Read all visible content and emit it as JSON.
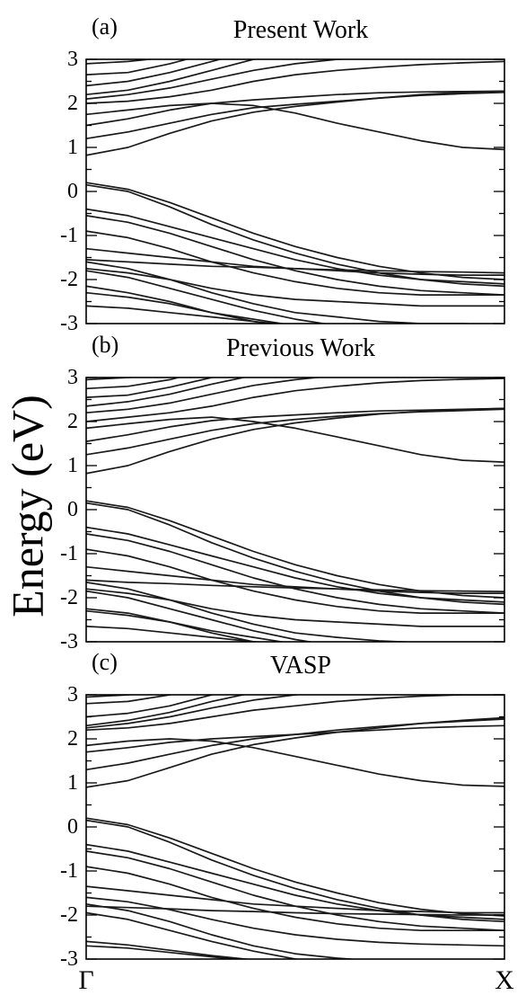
{
  "figure": {
    "ylabel": "Energy (eV)",
    "x_tick_labels": [
      "Γ",
      "X"
    ]
  },
  "chart_data": [
    {
      "type": "line",
      "panel_label": "(a)",
      "title": "Present Work",
      "ylabel": "Energy (eV)",
      "ylim": [
        -3,
        3
      ],
      "yticks": [
        3,
        2,
        1,
        0,
        -1,
        -2,
        -3
      ],
      "xlim": [
        0,
        1
      ],
      "x_tick_labels": [
        "Γ",
        "X"
      ],
      "x": [
        0,
        0.1,
        0.2,
        0.3,
        0.4,
        0.5,
        0.6,
        0.7,
        0.8,
        0.9,
        1
      ],
      "series": [
        {
          "values": [
            0.82,
            1.0,
            1.32,
            1.6,
            1.8,
            1.93,
            2.03,
            2.12,
            2.2,
            2.25,
            2.28
          ]
        },
        {
          "values": [
            1.2,
            1.35,
            1.55,
            1.75,
            1.9,
            1.98,
            2.05,
            2.12,
            2.18,
            2.22,
            2.25
          ]
        },
        {
          "values": [
            1.5,
            1.65,
            1.85,
            2.0,
            2.08,
            2.14,
            2.2,
            2.24,
            2.26,
            2.27,
            2.28
          ]
        },
        {
          "values": [
            1.75,
            1.85,
            1.95,
            2.0,
            1.95,
            1.78,
            1.55,
            1.35,
            1.15,
            1.0,
            0.95
          ]
        },
        {
          "values": [
            2.0,
            2.05,
            2.15,
            2.3,
            2.5,
            2.65,
            2.75,
            2.82,
            2.88,
            2.92,
            2.95
          ]
        },
        {
          "values": [
            2.1,
            2.2,
            2.35,
            2.55,
            2.75,
            2.9,
            3.0,
            3.05,
            3.1,
            3.1,
            3.1
          ]
        },
        {
          "values": [
            2.2,
            2.3,
            2.5,
            2.75,
            3.0,
            3.2,
            3.3,
            3.4,
            3.45,
            3.5,
            3.5
          ]
        },
        {
          "values": [
            2.4,
            2.5,
            2.7,
            2.95,
            3.2,
            3.4,
            3.5,
            3.5,
            3.5,
            3.5,
            3.5
          ]
        },
        {
          "values": [
            2.65,
            2.7,
            2.9,
            3.15,
            3.35,
            3.5,
            3.5,
            3.5,
            3.5,
            3.5,
            3.5
          ]
        },
        {
          "values": [
            2.9,
            2.95,
            3.05,
            3.25,
            3.45,
            3.5,
            3.5,
            3.5,
            3.5,
            3.5,
            3.5
          ]
        },
        {
          "values": [
            0.2,
            0.05,
            -0.25,
            -0.6,
            -0.95,
            -1.25,
            -1.5,
            -1.7,
            -1.85,
            -1.95,
            -2.0
          ]
        },
        {
          "values": [
            0.15,
            0.0,
            -0.35,
            -0.75,
            -1.1,
            -1.4,
            -1.65,
            -1.85,
            -2.0,
            -2.1,
            -2.15
          ]
        },
        {
          "values": [
            -0.4,
            -0.55,
            -0.8,
            -1.05,
            -1.3,
            -1.55,
            -1.75,
            -1.9,
            -2.0,
            -2.05,
            -2.1
          ]
        },
        {
          "values": [
            -0.55,
            -0.7,
            -0.95,
            -1.25,
            -1.55,
            -1.8,
            -2.0,
            -2.15,
            -2.25,
            -2.3,
            -2.35
          ]
        },
        {
          "values": [
            -0.9,
            -1.05,
            -1.3,
            -1.6,
            -1.85,
            -2.05,
            -2.2,
            -2.3,
            -2.35,
            -2.35,
            -2.35
          ]
        },
        {
          "values": [
            -1.3,
            -1.4,
            -1.5,
            -1.6,
            -1.7,
            -1.75,
            -1.8,
            -1.85,
            -1.88,
            -1.9,
            -1.9
          ]
        },
        {
          "values": [
            -1.55,
            -1.6,
            -1.65,
            -1.7,
            -1.72,
            -1.75,
            -1.78,
            -1.8,
            -1.82,
            -1.83,
            -1.85
          ]
        },
        {
          "values": [
            -1.6,
            -1.75,
            -2.0,
            -2.3,
            -2.55,
            -2.75,
            -2.85,
            -2.95,
            -3.0,
            -3.0,
            -3.05
          ]
        },
        {
          "values": [
            -1.8,
            -1.95,
            -2.2,
            -2.45,
            -2.7,
            -2.9,
            -3.05,
            -3.15,
            -3.2,
            -3.2,
            -3.2
          ]
        },
        {
          "values": [
            -2.15,
            -2.3,
            -2.5,
            -2.75,
            -2.95,
            -3.1,
            -3.2,
            -3.25,
            -3.3,
            -3.3,
            -3.3
          ]
        },
        {
          "values": [
            -2.3,
            -2.4,
            -2.55,
            -2.75,
            -2.9,
            -3.05,
            -3.15,
            -3.2,
            -3.25,
            -3.25,
            -3.25
          ]
        },
        {
          "values": [
            -2.6,
            -2.65,
            -2.75,
            -2.85,
            -2.95,
            -3.05,
            -3.1,
            -3.15,
            -3.2,
            -3.2,
            -3.2
          ]
        },
        {
          "values": [
            -1.75,
            -1.85,
            -2.0,
            -2.2,
            -2.35,
            -2.45,
            -2.5,
            -2.55,
            -2.6,
            -2.6,
            -2.6
          ]
        }
      ]
    },
    {
      "type": "line",
      "panel_label": "(b)",
      "title": "Previous Work",
      "ylabel": "Energy (eV)",
      "ylim": [
        -3,
        3
      ],
      "yticks": [
        3,
        2,
        1,
        0,
        -1,
        -2,
        -3
      ],
      "xlim": [
        0,
        1
      ],
      "x_tick_labels": [
        "Γ",
        "X"
      ],
      "x": [
        0,
        0.1,
        0.2,
        0.3,
        0.4,
        0.5,
        0.6,
        0.7,
        0.8,
        0.9,
        1
      ],
      "series": [
        {
          "values": [
            0.82,
            1.0,
            1.32,
            1.6,
            1.82,
            1.97,
            2.08,
            2.17,
            2.23,
            2.27,
            2.3
          ]
        },
        {
          "values": [
            1.25,
            1.4,
            1.6,
            1.8,
            1.95,
            2.05,
            2.12,
            2.18,
            2.22,
            2.25,
            2.28
          ]
        },
        {
          "values": [
            1.55,
            1.7,
            1.88,
            2.02,
            2.1,
            2.15,
            2.2,
            2.24,
            2.26,
            2.28,
            2.3
          ]
        },
        {
          "values": [
            1.85,
            1.95,
            2.05,
            2.1,
            2.0,
            1.85,
            1.65,
            1.45,
            1.25,
            1.12,
            1.08
          ]
        },
        {
          "values": [
            2.0,
            2.1,
            2.2,
            2.35,
            2.55,
            2.7,
            2.8,
            2.88,
            2.93,
            2.96,
            2.98
          ]
        },
        {
          "values": [
            2.2,
            2.28,
            2.42,
            2.62,
            2.82,
            2.95,
            3.05,
            3.1,
            3.12,
            3.12,
            3.12
          ]
        },
        {
          "values": [
            2.35,
            2.45,
            2.62,
            2.85,
            3.05,
            3.25,
            3.35,
            3.45,
            3.5,
            3.5,
            3.5
          ]
        },
        {
          "values": [
            2.55,
            2.6,
            2.78,
            3.0,
            3.25,
            3.45,
            3.5,
            3.5,
            3.5,
            3.5,
            3.5
          ]
        },
        {
          "values": [
            2.75,
            2.8,
            2.95,
            3.2,
            3.4,
            3.5,
            3.5,
            3.5,
            3.5,
            3.5,
            3.5
          ]
        },
        {
          "values": [
            2.95,
            3.0,
            3.1,
            3.3,
            3.5,
            3.5,
            3.5,
            3.5,
            3.5,
            3.5,
            3.5
          ]
        },
        {
          "values": [
            0.2,
            0.05,
            -0.25,
            -0.6,
            -0.95,
            -1.25,
            -1.5,
            -1.7,
            -1.85,
            -1.95,
            -2.0
          ]
        },
        {
          "values": [
            0.15,
            0.0,
            -0.35,
            -0.75,
            -1.1,
            -1.4,
            -1.65,
            -1.85,
            -2.0,
            -2.1,
            -2.15
          ]
        },
        {
          "values": [
            -0.4,
            -0.55,
            -0.8,
            -1.05,
            -1.3,
            -1.55,
            -1.75,
            -1.9,
            -2.0,
            -2.05,
            -2.1
          ]
        },
        {
          "values": [
            -0.55,
            -0.7,
            -0.95,
            -1.25,
            -1.55,
            -1.8,
            -2.0,
            -2.15,
            -2.25,
            -2.3,
            -2.35
          ]
        },
        {
          "values": [
            -0.9,
            -1.05,
            -1.3,
            -1.6,
            -1.85,
            -2.05,
            -2.2,
            -2.3,
            -2.35,
            -2.35,
            -2.35
          ]
        },
        {
          "values": [
            -1.3,
            -1.4,
            -1.5,
            -1.6,
            -1.7,
            -1.75,
            -1.8,
            -1.85,
            -1.88,
            -1.9,
            -1.9
          ]
        },
        {
          "values": [
            -1.6,
            -1.65,
            -1.68,
            -1.72,
            -1.75,
            -1.78,
            -1.8,
            -1.82,
            -1.84,
            -1.85,
            -1.86
          ]
        },
        {
          "values": [
            -1.65,
            -1.8,
            -2.05,
            -2.35,
            -2.6,
            -2.8,
            -2.9,
            -2.98,
            -3.02,
            -3.05,
            -3.05
          ]
        },
        {
          "values": [
            -1.85,
            -2.0,
            -2.25,
            -2.5,
            -2.75,
            -2.95,
            -3.1,
            -3.18,
            -3.2,
            -3.2,
            -3.2
          ]
        },
        {
          "values": [
            -2.25,
            -2.35,
            -2.55,
            -2.8,
            -3.0,
            -3.15,
            -3.25,
            -3.3,
            -3.3,
            -3.3,
            -3.3
          ]
        },
        {
          "values": [
            -2.3,
            -2.4,
            -2.55,
            -2.75,
            -2.9,
            -3.05,
            -3.15,
            -3.2,
            -3.25,
            -3.25,
            -3.25
          ]
        },
        {
          "values": [
            -2.65,
            -2.7,
            -2.8,
            -2.9,
            -3.0,
            -3.05,
            -3.1,
            -3.15,
            -3.2,
            -3.2,
            -3.2
          ]
        },
        {
          "values": [
            -1.8,
            -1.9,
            -2.05,
            -2.25,
            -2.4,
            -2.5,
            -2.55,
            -2.6,
            -2.65,
            -2.65,
            -2.65
          ]
        }
      ]
    },
    {
      "type": "line",
      "panel_label": "(c)",
      "title": "VASP",
      "ylabel": "Energy (eV)",
      "ylim": [
        -3,
        3
      ],
      "yticks": [
        3,
        2,
        1,
        0,
        -1,
        -2,
        -3
      ],
      "xlim": [
        0,
        1
      ],
      "x_tick_labels": [
        "Γ",
        "X"
      ],
      "x": [
        0,
        0.1,
        0.2,
        0.3,
        0.4,
        0.5,
        0.6,
        0.7,
        0.8,
        0.9,
        1
      ],
      "series": [
        {
          "values": [
            0.9,
            1.05,
            1.35,
            1.65,
            1.87,
            2.02,
            2.15,
            2.25,
            2.35,
            2.42,
            2.48
          ]
        },
        {
          "values": [
            1.3,
            1.45,
            1.65,
            1.85,
            2.0,
            2.1,
            2.2,
            2.28,
            2.35,
            2.4,
            2.45
          ]
        },
        {
          "values": [
            1.7,
            1.8,
            1.92,
            2.0,
            2.05,
            2.1,
            2.15,
            2.2,
            2.25,
            2.28,
            2.3
          ]
        },
        {
          "values": [
            1.85,
            1.95,
            2.0,
            1.95,
            1.8,
            1.6,
            1.4,
            1.2,
            1.05,
            0.95,
            0.92
          ]
        },
        {
          "values": [
            2.2,
            2.25,
            2.35,
            2.5,
            2.65,
            2.75,
            2.85,
            2.92,
            2.97,
            3.0,
            3.0
          ]
        },
        {
          "values": [
            2.25,
            2.35,
            2.5,
            2.7,
            2.88,
            3.0,
            3.1,
            3.15,
            3.2,
            3.2,
            3.2
          ]
        },
        {
          "values": [
            2.3,
            2.42,
            2.6,
            2.85,
            3.05,
            3.25,
            3.35,
            3.45,
            3.5,
            3.5,
            3.5
          ]
        },
        {
          "values": [
            2.5,
            2.58,
            2.75,
            3.0,
            3.25,
            3.45,
            3.5,
            3.5,
            3.5,
            3.5,
            3.5
          ]
        },
        {
          "values": [
            2.8,
            2.85,
            3.0,
            3.2,
            3.4,
            3.5,
            3.5,
            3.5,
            3.5,
            3.5,
            3.5
          ]
        },
        {
          "values": [
            2.95,
            3.0,
            3.1,
            3.3,
            3.5,
            3.5,
            3.5,
            3.5,
            3.5,
            3.5,
            3.5
          ]
        },
        {
          "values": [
            0.2,
            0.05,
            -0.25,
            -0.6,
            -0.95,
            -1.25,
            -1.5,
            -1.72,
            -1.87,
            -1.97,
            -2.02
          ]
        },
        {
          "values": [
            0.15,
            0.0,
            -0.35,
            -0.75,
            -1.1,
            -1.4,
            -1.65,
            -1.85,
            -2.0,
            -2.1,
            -2.15
          ]
        },
        {
          "values": [
            -0.4,
            -0.55,
            -0.8,
            -1.05,
            -1.3,
            -1.55,
            -1.75,
            -1.9,
            -2.0,
            -2.05,
            -2.1
          ]
        },
        {
          "values": [
            -0.55,
            -0.7,
            -0.95,
            -1.25,
            -1.55,
            -1.8,
            -2.0,
            -2.15,
            -2.25,
            -2.3,
            -2.35
          ]
        },
        {
          "values": [
            -0.9,
            -1.05,
            -1.3,
            -1.6,
            -1.85,
            -2.05,
            -2.2,
            -2.3,
            -2.35,
            -2.35,
            -2.35
          ]
        },
        {
          "values": [
            -1.35,
            -1.45,
            -1.55,
            -1.65,
            -1.75,
            -1.8,
            -1.85,
            -1.9,
            -1.92,
            -1.95,
            -1.95
          ]
        },
        {
          "values": [
            -1.8,
            -1.83,
            -1.86,
            -1.9,
            -1.92,
            -1.95,
            -1.97,
            -1.98,
            -1.99,
            -2.0,
            -2.0
          ]
        },
        {
          "values": [
            -1.75,
            -1.9,
            -2.15,
            -2.45,
            -2.7,
            -2.88,
            -2.98,
            -3.05,
            -3.08,
            -3.1,
            -3.1
          ]
        },
        {
          "values": [
            -1.95,
            -2.1,
            -2.35,
            -2.6,
            -2.82,
            -3.0,
            -3.12,
            -3.2,
            -3.22,
            -3.22,
            -3.22
          ]
        },
        {
          "values": [
            -2.6,
            -2.68,
            -2.8,
            -2.92,
            -3.02,
            -3.1,
            -3.15,
            -3.2,
            -3.22,
            -3.22,
            -3.22
          ]
        },
        {
          "values": [
            -1.6,
            -1.7,
            -1.88,
            -2.1,
            -2.3,
            -2.45,
            -2.55,
            -2.62,
            -2.66,
            -2.68,
            -2.7
          ]
        },
        {
          "values": [
            -2.7,
            -2.75,
            -2.85,
            -2.95,
            -3.05,
            -3.1,
            -3.15,
            -3.18,
            -3.2,
            -3.2,
            -3.2
          ]
        }
      ]
    }
  ]
}
